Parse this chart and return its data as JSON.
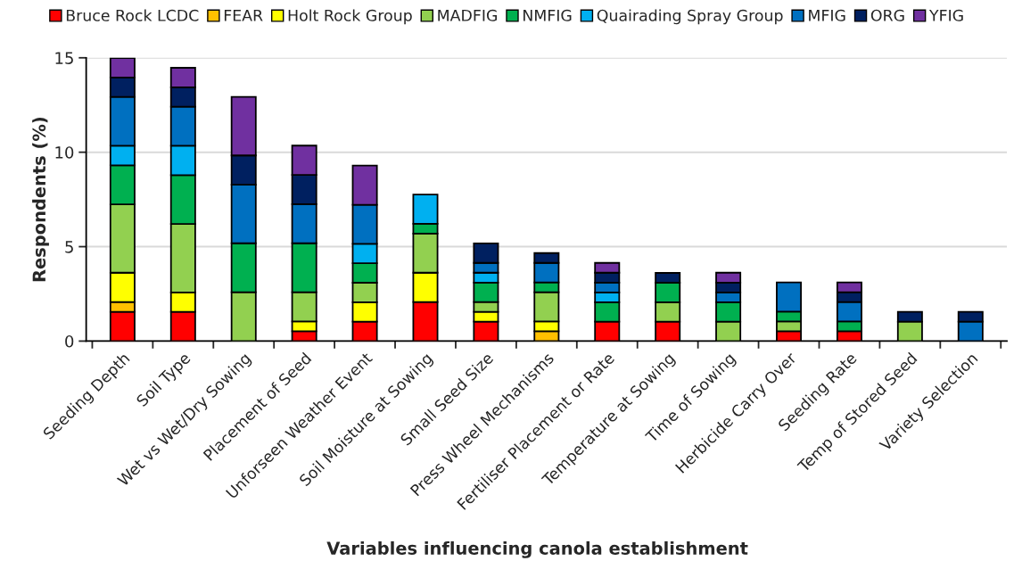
{
  "chart_data": {
    "type": "bar",
    "stacked": true,
    "xlabel": "Variables influencing canola establishment",
    "ylabel": "Respondents (%)",
    "categories": [
      "Seeding Depth",
      "Soil Type",
      "Wet vs Wet/Dry Sowing",
      "Placement of Seed",
      "Unforseen Weather Event",
      "Soil Moisture at Sowing",
      "Small Seed Size",
      "Press Wheel Mechanisms",
      "Fertiliser Placement or Rate",
      "Temperature at Sowing",
      "Time of Sowing",
      "Herbicide Carry Over",
      "Seeding Rate",
      "Temp of Stored Seed",
      "Variety Selection"
    ],
    "ylim": [
      0,
      15
    ],
    "yticks": [
      0,
      5,
      10,
      15
    ],
    "grid": "y",
    "legend": "top",
    "series": [
      {
        "name": "Bruce Rock LCDC",
        "color": "#ff0000",
        "values": [
          1.55,
          1.55,
          null,
          0.52,
          1.03,
          2.07,
          1.03,
          null,
          1.03,
          1.03,
          null,
          0.52,
          0.52,
          null,
          null
        ]
      },
      {
        "name": "FEAR",
        "color": "#ffc000",
        "values": [
          0.52,
          null,
          null,
          null,
          null,
          null,
          null,
          0.52,
          null,
          null,
          null,
          null,
          null,
          null,
          null
        ]
      },
      {
        "name": "Holt Rock Group",
        "color": "#ffff00",
        "values": [
          1.55,
          1.03,
          null,
          0.52,
          1.03,
          1.55,
          0.52,
          0.52,
          null,
          null,
          null,
          null,
          null,
          null,
          null
        ]
      },
      {
        "name": "MADFIG",
        "color": "#92d050",
        "values": [
          3.62,
          3.62,
          2.59,
          1.55,
          1.03,
          2.07,
          0.52,
          1.55,
          null,
          1.03,
          1.03,
          0.52,
          null,
          1.03,
          null
        ]
      },
      {
        "name": "NMFIG",
        "color": "#00b050",
        "values": [
          2.07,
          2.59,
          2.59,
          2.59,
          1.03,
          0.52,
          1.03,
          0.52,
          1.03,
          1.03,
          1.03,
          0.52,
          0.52,
          null,
          null
        ]
      },
      {
        "name": "Quairading Spray Group",
        "color": "#00b0f0",
        "values": [
          1.03,
          1.55,
          null,
          null,
          1.03,
          1.55,
          0.52,
          null,
          0.52,
          null,
          null,
          null,
          null,
          null,
          null
        ]
      },
      {
        "name": "MFIG",
        "color": "#0070c0",
        "values": [
          2.59,
          2.07,
          3.1,
          2.07,
          2.07,
          null,
          0.52,
          1.03,
          0.52,
          null,
          0.52,
          1.55,
          1.03,
          null,
          1.03
        ]
      },
      {
        "name": "ORG",
        "color": "#002060",
        "values": [
          1.03,
          1.03,
          1.55,
          1.55,
          null,
          null,
          1.03,
          0.52,
          0.52,
          0.52,
          0.52,
          null,
          0.52,
          0.52,
          0.52
        ]
      },
      {
        "name": "YFIG",
        "color": "#7030a0",
        "values": [
          1.03,
          1.03,
          3.1,
          1.55,
          2.07,
          null,
          null,
          null,
          0.52,
          null,
          0.52,
          null,
          0.52,
          null,
          null
        ]
      }
    ]
  }
}
